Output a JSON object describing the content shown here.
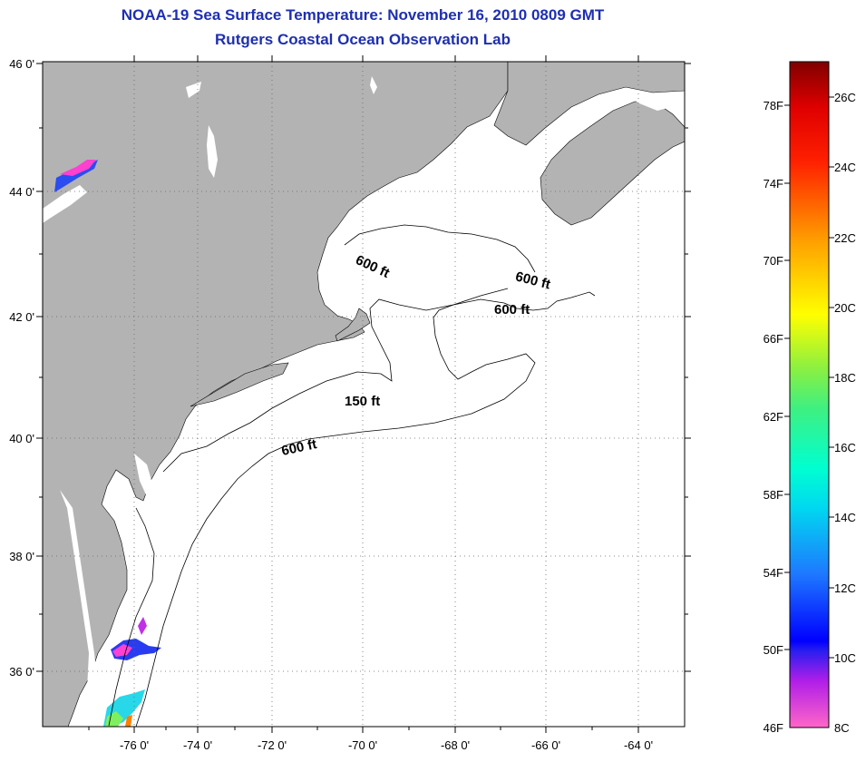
{
  "title": {
    "line1": "NOAA-19 Sea Surface Temperature:  November 16, 2010 0809 GMT",
    "line2": "Rutgers Coastal Ocean Observation Lab"
  },
  "map": {
    "lat_labels": [
      "46 0'",
      "44 0'",
      "42 0'",
      "40 0'",
      "38 0'",
      "36 0'"
    ],
    "lon_labels": [
      "-76 0'",
      "-74 0'",
      "-72 0'",
      "-70 0'",
      "-68 0'",
      "-66 0'",
      "-64 0'"
    ],
    "contour_labels": [
      "600 ft",
      "600 ft",
      "600 ft",
      "150 ft",
      "600 ft"
    ]
  },
  "colorbar": {
    "fahrenheit": [
      "78F",
      "74F",
      "70F",
      "66F",
      "62F",
      "58F",
      "54F",
      "50F",
      "46F"
    ],
    "celsius": [
      "26C",
      "24C",
      "22C",
      "20C",
      "18C",
      "16C",
      "14C",
      "12C",
      "10C",
      "8C"
    ]
  },
  "colors": {
    "title": "#1e2fb0",
    "land": "#b3b3b3",
    "ocean": "#ffffff"
  }
}
